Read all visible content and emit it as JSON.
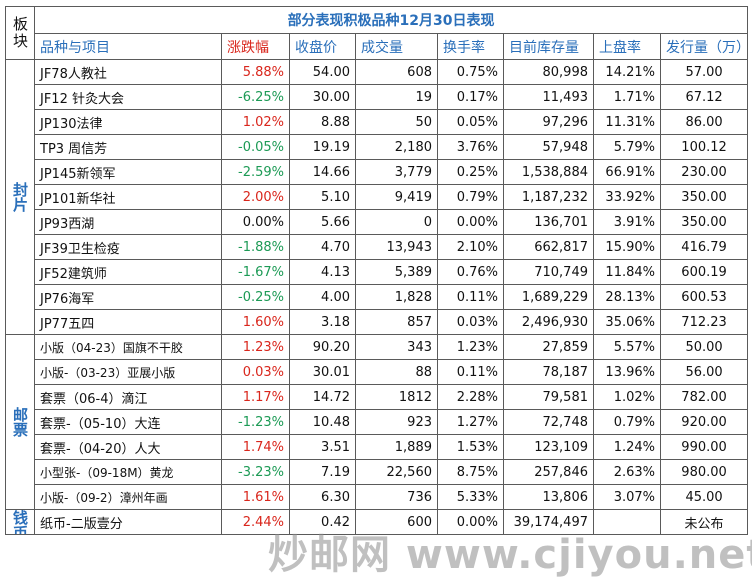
{
  "table": {
    "title": "部分表现积极品种12月30日表现",
    "block_header": "板块",
    "headers": [
      "品种与项目",
      "涨跌幅",
      "收盘价",
      "成交量",
      "换手率",
      "目前库存量",
      "上盘率",
      "发行量（万）"
    ],
    "sections": [
      {
        "label": "封片",
        "rows": [
          {
            "name": "JF78人教社",
            "change": "5.88%",
            "dir": "up",
            "close": "54.00",
            "volume": "608",
            "turnover": "0.75%",
            "stock": "80,998",
            "listing": "14.21%",
            "issue": "57.00"
          },
          {
            "name": "JF12 针灸大会",
            "change": "-6.25%",
            "dir": "down",
            "close": "30.00",
            "volume": "19",
            "turnover": "0.17%",
            "stock": "11,493",
            "listing": "1.71%",
            "issue": "67.12"
          },
          {
            "name": "JP130法律",
            "change": "1.02%",
            "dir": "up",
            "close": "8.88",
            "volume": "50",
            "turnover": "0.05%",
            "stock": "97,296",
            "listing": "11.31%",
            "issue": "86.00"
          },
          {
            "name": "TP3 周信芳",
            "change": "-0.05%",
            "dir": "down",
            "close": "19.19",
            "volume": "2,180",
            "turnover": "3.76%",
            "stock": "57,948",
            "listing": "5.79%",
            "issue": "100.12"
          },
          {
            "name": "JP145新领军",
            "change": "-2.59%",
            "dir": "down",
            "close": "14.66",
            "volume": "3,779",
            "turnover": "0.25%",
            "stock": "1,538,884",
            "listing": "66.91%",
            "issue": "230.00"
          },
          {
            "name": "JP101新华社",
            "change": "2.00%",
            "dir": "up",
            "close": "5.10",
            "volume": "9,419",
            "turnover": "0.79%",
            "stock": "1,187,232",
            "listing": "33.92%",
            "issue": "350.00"
          },
          {
            "name": "JP93西湖",
            "change": "0.00%",
            "dir": "flat",
            "close": "5.66",
            "volume": "0",
            "turnover": "0.00%",
            "stock": "136,701",
            "listing": "3.91%",
            "issue": "350.00"
          },
          {
            "name": "JF39卫生检疫",
            "change": "-1.88%",
            "dir": "down",
            "close": "4.70",
            "volume": "13,943",
            "turnover": "2.10%",
            "stock": "662,817",
            "listing": "15.90%",
            "issue": "416.79"
          },
          {
            "name": "JF52建筑师",
            "change": "-1.67%",
            "dir": "down",
            "close": "4.13",
            "volume": "5,389",
            "turnover": "0.76%",
            "stock": "710,749",
            "listing": "11.84%",
            "issue": "600.19"
          },
          {
            "name": "JP76海军",
            "change": "-0.25%",
            "dir": "down",
            "close": "4.00",
            "volume": "1,828",
            "turnover": "0.11%",
            "stock": "1,689,229",
            "listing": "28.13%",
            "issue": "600.53"
          },
          {
            "name": "JP77五四",
            "change": "1.60%",
            "dir": "up",
            "close": "3.18",
            "volume": "857",
            "turnover": "0.03%",
            "stock": "2,496,930",
            "listing": "35.06%",
            "issue": "712.23"
          }
        ]
      },
      {
        "label": "邮票",
        "rows": [
          {
            "name": "小版（04-23）国旗不干胶",
            "change": "1.23%",
            "dir": "up",
            "close": "90.20",
            "volume": "343",
            "turnover": "1.23%",
            "stock": "27,859",
            "listing": "5.57%",
            "issue": "50.00",
            "small": true
          },
          {
            "name": "小版-（03-23）亚展小版",
            "change": "0.03%",
            "dir": "up",
            "close": "30.01",
            "volume": "88",
            "turnover": "0.11%",
            "stock": "78,187",
            "listing": "13.96%",
            "issue": "56.00",
            "small": true
          },
          {
            "name": "套票（06-4）滴江",
            "change": "1.17%",
            "dir": "up",
            "close": "14.72",
            "volume": "1812",
            "turnover": "2.28%",
            "stock": "79,581",
            "listing": "1.02%",
            "issue": "782.00"
          },
          {
            "name": "套票-（05-10）大连",
            "change": "-1.23%",
            "dir": "down",
            "close": "10.48",
            "volume": "923",
            "turnover": "1.27%",
            "stock": "72,748",
            "listing": "0.79%",
            "issue": "920.00"
          },
          {
            "name": "套票-（04-20）人大",
            "change": "1.74%",
            "dir": "up",
            "close": "3.51",
            "volume": "1,889",
            "turnover": "1.53%",
            "stock": "123,109",
            "listing": "1.24%",
            "issue": "990.00"
          },
          {
            "name": "小型张-（09-18M）黄龙",
            "change": "-3.23%",
            "dir": "down",
            "close": "7.19",
            "volume": "22,560",
            "turnover": "8.75%",
            "stock": "257,846",
            "listing": "2.63%",
            "issue": "980.00",
            "small": true
          },
          {
            "name": "小版-（09-2）漳州年画",
            "change": "1.61%",
            "dir": "up",
            "close": "6.30",
            "volume": "736",
            "turnover": "5.33%",
            "stock": "13,806",
            "listing": "3.07%",
            "issue": "45.00",
            "small": true
          }
        ]
      },
      {
        "label": "钱币",
        "rows": [
          {
            "name": "纸币-二版壹分",
            "change": "2.44%",
            "dir": "up",
            "close": "0.42",
            "volume": "600",
            "turnover": "0.00%",
            "stock": "39,174,497",
            "listing": "",
            "issue": "未公布"
          }
        ]
      }
    ]
  },
  "watermark": "炒邮网 www.cjiyou.net",
  "colors": {
    "header_blue": "#2a6fba",
    "up_red": "#d9261c",
    "down_green": "#1c9a55"
  }
}
